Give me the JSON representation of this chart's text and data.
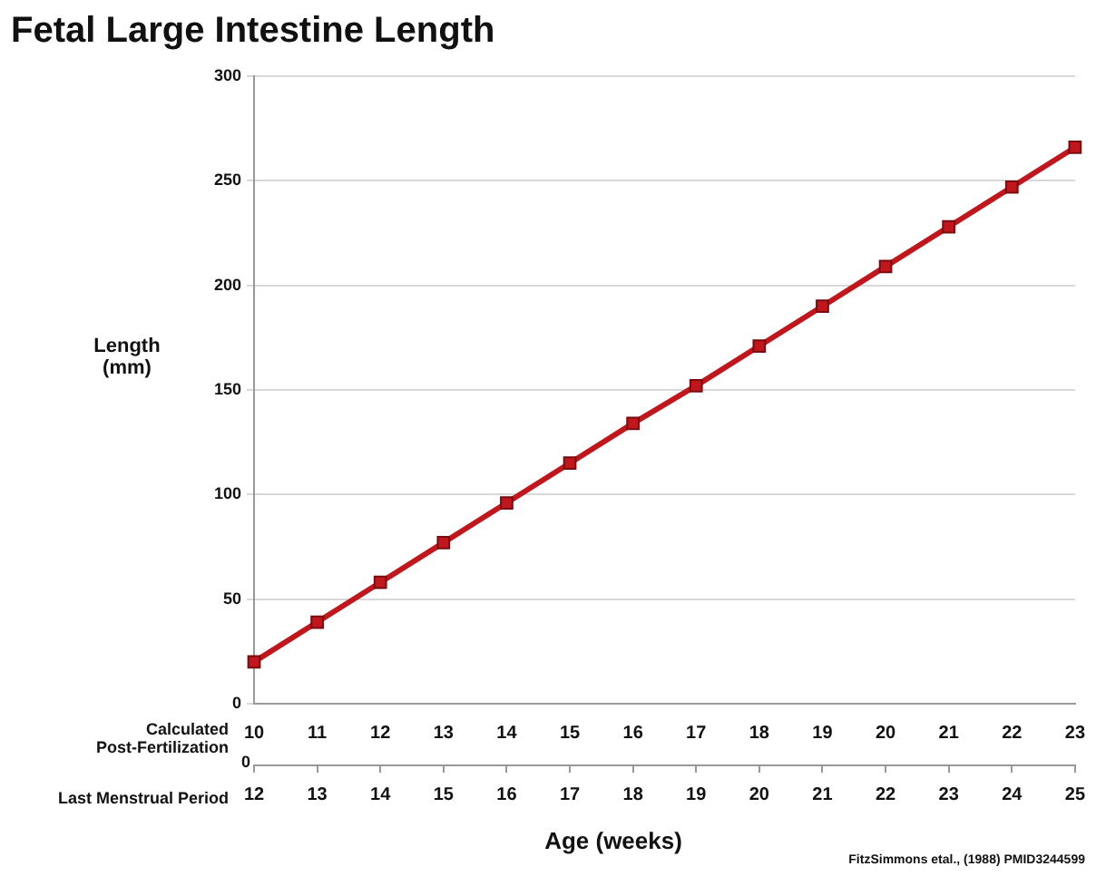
{
  "chart_data": {
    "type": "line",
    "title": "Fetal Large Intestine Length",
    "xlabel": "Age (weeks)",
    "ylabel": "Length (mm)",
    "x": [
      10,
      11,
      12,
      13,
      14,
      15,
      16,
      17,
      18,
      19,
      20,
      21,
      22,
      23
    ],
    "series": [
      {
        "color": "#c0161c",
        "values": [
          20,
          39,
          58,
          77,
          96,
          115,
          134,
          152,
          171,
          190,
          209,
          228,
          247,
          266
        ]
      }
    ],
    "xlim": [
      10,
      23
    ],
    "xticks": [
      10,
      11,
      12,
      13,
      14,
      15,
      16,
      17,
      18,
      19,
      20,
      21,
      22,
      23
    ],
    "x2lim": [
      12,
      25
    ],
    "x2ticks": [
      12,
      13,
      14,
      15,
      16,
      17,
      18,
      19,
      20,
      21,
      22,
      23,
      24,
      25
    ],
    "ylim": [
      0,
      300
    ],
    "yticks": [
      0,
      50,
      100,
      150,
      200,
      250,
      300
    ],
    "grid": "y",
    "marker": "square",
    "line_style": "solid",
    "legend": false,
    "annotations": [
      "Calculated Post-Fertilization",
      "0",
      "Last Menstrual Period",
      "FitzSimmons etal., (1988) PMID3244599"
    ]
  }
}
